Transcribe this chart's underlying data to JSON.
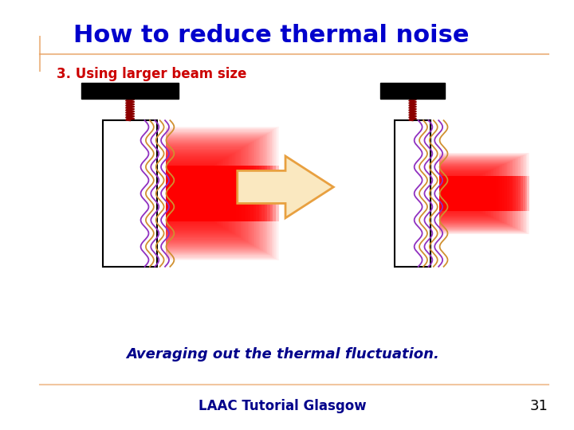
{
  "title": "How to reduce thermal noise",
  "subtitle": "3. Using larger beam size",
  "bottom_text": "Averaging out the thermal fluctuation.",
  "footer_text": "LAAC Tutorial Glasgow",
  "page_number": "31",
  "title_color": "#0000CC",
  "subtitle_color": "#CC0000",
  "bottom_text_color": "#00008B",
  "footer_color": "#00008B",
  "accent_line_color": "#E8A060",
  "background_color": "#FFFFFF"
}
